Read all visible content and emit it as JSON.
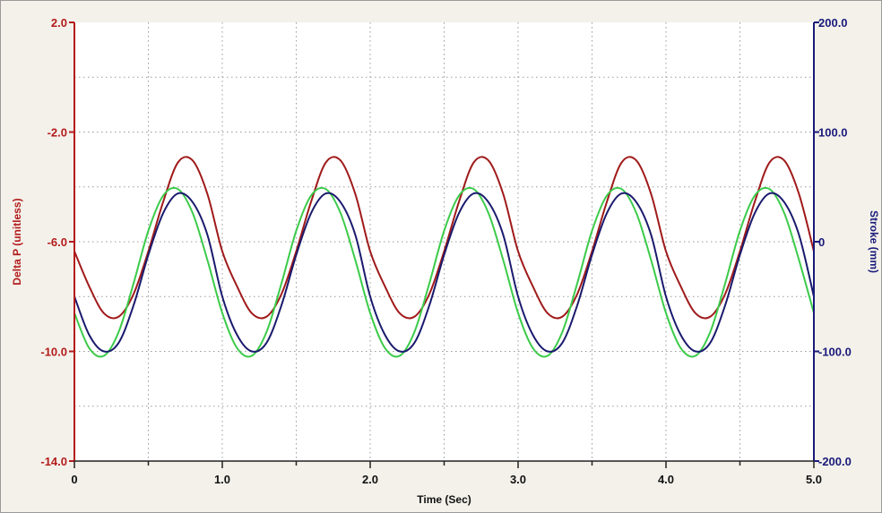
{
  "chart_data": {
    "type": "line",
    "xlabel": "Time (Sec)",
    "ylabel_left": "Delta P (unitless)",
    "ylabel_right": "Stroke (mm)",
    "xlim": [
      0,
      5.0
    ],
    "ylim_left": [
      -14.0,
      2.0
    ],
    "ylim_right": [
      -200.0,
      200.0
    ],
    "x_ticks": [
      "0",
      "1.0",
      "2.0",
      "3.0",
      "4.0",
      "5.0"
    ],
    "y_left_ticks": [
      "2.0",
      "-2.0",
      "-6.0",
      "-10.0",
      "-14.0"
    ],
    "y_right_ticks": [
      "200.0",
      "100.0",
      "0",
      "-100.0",
      "-200.0"
    ],
    "grid": true,
    "colors": {
      "delta_p": "#a01a1a",
      "stroke_green": "#3ccb4a",
      "stroke_navy": "#1a1a6e",
      "left_axis": "#b31b1b",
      "right_axis": "#1a1a7a",
      "plot_bg": "#ffffff",
      "frame_bg": "#f3f1ea"
    },
    "series": [
      {
        "axis": "left",
        "color": "#a01a1a",
        "x": [
          0,
          0.1,
          0.2,
          0.3,
          0.4,
          0.5,
          0.6,
          0.7,
          0.8,
          0.9,
          1.0,
          1.1,
          1.2,
          1.3,
          1.4,
          1.5,
          1.6,
          1.7,
          1.8,
          1.9,
          2.0,
          2.1,
          2.2,
          2.3,
          2.4,
          2.5,
          2.6,
          2.7,
          2.8,
          2.9,
          3.0,
          3.1,
          3.2,
          3.3,
          3.4,
          3.5,
          3.6,
          3.7,
          3.8,
          3.9,
          4.0,
          4.1,
          4.2,
          4.3,
          4.4,
          4.5,
          4.6,
          4.7,
          4.8,
          4.9,
          5.0
        ],
        "y": [
          -6.35,
          -7.63,
          -8.61,
          -8.73,
          -7.91,
          -6.35,
          -4.55,
          -3.11,
          -3.04,
          -4.27,
          -6.35,
          -7.63,
          -8.61,
          -8.73,
          -7.91,
          -6.35,
          -4.55,
          -3.11,
          -3.04,
          -4.27,
          -6.35,
          -7.63,
          -8.61,
          -8.73,
          -7.91,
          -6.35,
          -4.55,
          -3.11,
          -3.04,
          -4.27,
          -6.35,
          -7.63,
          -8.61,
          -8.73,
          -7.91,
          -6.35,
          -4.55,
          -3.11,
          -3.04,
          -4.27,
          -6.35,
          -7.63,
          -8.61,
          -8.73,
          -7.91,
          -6.35,
          -4.55,
          -3.11,
          -3.04,
          -4.27,
          -6.35
        ]
      },
      {
        "axis": "right",
        "color": "#3ccb4a",
        "x": [
          0,
          0.1,
          0.2,
          0.3,
          0.4,
          0.5,
          0.6,
          0.7,
          0.8,
          0.9,
          1.0,
          1.1,
          1.2,
          1.3,
          1.4,
          1.5,
          1.6,
          1.7,
          1.8,
          1.9,
          2.0,
          2.1,
          2.2,
          2.3,
          2.4,
          2.5,
          2.6,
          2.7,
          2.8,
          2.9,
          3.0,
          3.1,
          3.2,
          3.3,
          3.4,
          3.5,
          3.6,
          3.7,
          3.8,
          3.9,
          4.0,
          4.1,
          4.2,
          4.3,
          4.4,
          4.5,
          4.6,
          4.7,
          4.8,
          4.9,
          5.0
        ],
        "y": [
          -65,
          -97,
          -104,
          -82,
          -38,
          10,
          42,
          48,
          26,
          -17,
          -65,
          -97,
          -104,
          -82,
          -38,
          10,
          42,
          48,
          26,
          -17,
          -65,
          -97,
          -104,
          -82,
          -38,
          10,
          42,
          48,
          26,
          -17,
          -65,
          -97,
          -104,
          -82,
          -38,
          10,
          42,
          48,
          26,
          -17,
          -65,
          -97,
          -104,
          -82,
          -38,
          10,
          42,
          48,
          26,
          -17,
          -65
        ]
      },
      {
        "axis": "right",
        "color": "#1a1a6e",
        "x": [
          0,
          0.1,
          0.2,
          0.3,
          0.4,
          0.5,
          0.6,
          0.7,
          0.8,
          0.9,
          1.0,
          1.1,
          1.2,
          1.3,
          1.4,
          1.5,
          1.6,
          1.7,
          1.8,
          1.9,
          2.0,
          2.1,
          2.2,
          2.3,
          2.4,
          2.5,
          2.6,
          2.7,
          2.8,
          2.9,
          3.0,
          3.1,
          3.2,
          3.3,
          3.4,
          3.5,
          3.6,
          3.7,
          3.8,
          3.9,
          4.0,
          4.1,
          4.2,
          4.3,
          4.4,
          4.5,
          4.6,
          4.7,
          4.8,
          4.9,
          5.0
        ],
        "y": [
          -50,
          -85,
          -100,
          -92,
          -58,
          -12,
          26,
          44,
          36,
          6,
          -50,
          -85,
          -100,
          -92,
          -58,
          -12,
          26,
          44,
          36,
          6,
          -50,
          -85,
          -100,
          -92,
          -58,
          -12,
          26,
          44,
          36,
          6,
          -50,
          -85,
          -100,
          -92,
          -58,
          -12,
          26,
          44,
          36,
          6,
          -50,
          -85,
          -100,
          -92,
          -58,
          -12,
          26,
          44,
          36,
          6,
          -50
        ]
      }
    ]
  }
}
